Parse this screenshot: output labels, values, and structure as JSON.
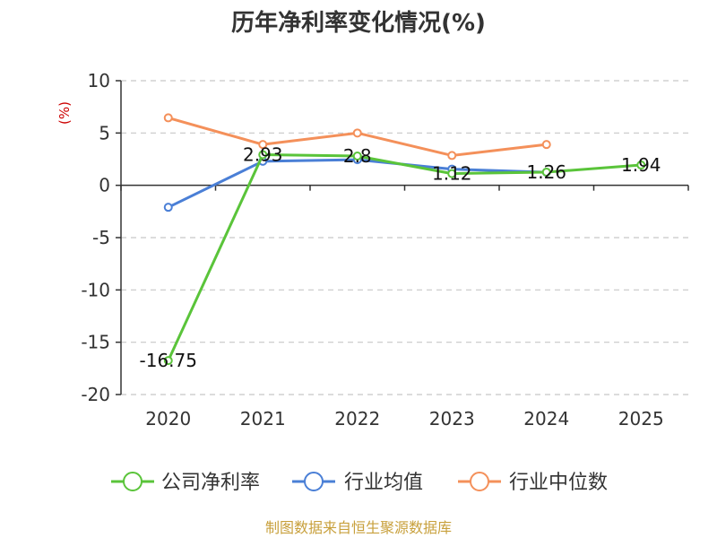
{
  "chart_data": {
    "type": "line",
    "title": "历年净利率变化情况(%)",
    "ylabel": "(%)",
    "xlabel": "",
    "categories": [
      "2020",
      "2021",
      "2022",
      "2023",
      "2024",
      "2025"
    ],
    "yticks": [
      "10",
      "5",
      "0",
      "-5",
      "-10",
      "-15",
      "-20"
    ],
    "ylim": [
      -20,
      10
    ],
    "grid": true,
    "legend_position": "bottom",
    "series": [
      {
        "name": "公司净利率",
        "color": "#5ac43a",
        "values": [
          -16.75,
          2.93,
          2.8,
          1.12,
          1.26,
          1.94
        ],
        "labels": [
          "-16.75",
          "2.93",
          "2.8",
          "1.12",
          "1.26",
          "1.94"
        ]
      },
      {
        "name": "行业均值",
        "color": "#4a7fd6",
        "values": [
          -2.1,
          2.3,
          2.45,
          1.55,
          1.25,
          null
        ],
        "labels": []
      },
      {
        "name": "行业中位数",
        "color": "#f4905a",
        "values": [
          6.45,
          3.9,
          5.0,
          2.85,
          3.9,
          null
        ],
        "labels": []
      }
    ]
  },
  "source": "制图数据来自恒生聚源数据库"
}
